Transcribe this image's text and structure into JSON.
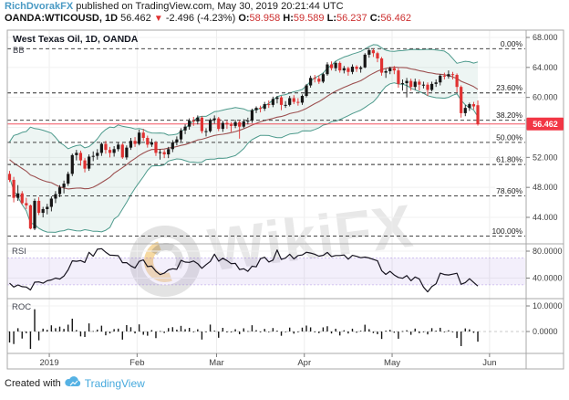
{
  "header": {
    "author": "RichDvorakFX",
    "published": " published on TradingView.com, May 30, 2019 20:21:44 UTC",
    "symbol": "OANDA:WTICOUSD, 1D",
    "last_price": "56.462",
    "direction": "▼",
    "change": "-2.496 (-4.23%)",
    "o_label": "O:",
    "o_val": "58.958",
    "h_label": "H:",
    "h_val": "59.589",
    "l_label": "L:",
    "l_val": "56.237",
    "c_label": "C:",
    "c_val": "56.462"
  },
  "legend": {
    "title": "West Texas Oil, 1D, OANDA",
    "indicator": "BB"
  },
  "panes": {
    "rsi_label": "RSI",
    "roc_label": "ROC"
  },
  "axes": {
    "price_ticks": [
      "68.000",
      "64.000",
      "60.000",
      "52.000",
      "48.000",
      "44.000"
    ],
    "price_badge": "56.462",
    "rsi_ticks": [
      "80.0000",
      "40.0000"
    ],
    "roc_ticks": [
      "10.0000",
      "0.0000"
    ],
    "time_ticks": [
      "2019",
      "Feb",
      "Mar",
      "Apr",
      "May",
      "Jun"
    ]
  },
  "watermark": {
    "text": "WikiFX"
  },
  "footer": {
    "prefix": "Created with",
    "brand": "TradingView"
  },
  "chart_data": {
    "type": "candlestick",
    "title": "West Texas Oil, 1D, OANDA",
    "symbol": "OANDA:WTICOUSD",
    "timeframe": "1D",
    "visible_price_range": [
      40.5,
      69.0
    ],
    "last_quote": {
      "open": 58.958,
      "high": 59.589,
      "low": 56.237,
      "close": 56.462,
      "change": -2.496,
      "change_pct": -4.23
    },
    "fib_retracement": {
      "high": 66.5,
      "low": 41.5,
      "levels": [
        {
          "label": "0.00%",
          "pct": 0
        },
        {
          "label": "23.60%",
          "pct": 23.6
        },
        {
          "label": "38.20%",
          "pct": 38.2
        },
        {
          "label": "50.00%",
          "pct": 50
        },
        {
          "label": "61.80%",
          "pct": 61.8
        },
        {
          "label": "78.60%",
          "pct": 78.6
        },
        {
          "label": "100.00%",
          "pct": 100
        }
      ]
    },
    "indicators": {
      "bollinger": {
        "period": 20,
        "stdev": 2
      },
      "rsi": {
        "period": 14,
        "bands": [
          70,
          30
        ],
        "range_labels": [
          80,
          40
        ]
      },
      "roc": {
        "period": 1,
        "range_labels": [
          10,
          0
        ]
      }
    },
    "warmup_closes": [
      52.9,
      53.3,
      51.5,
      52.6,
      51.0,
      51.7,
      51.2,
      52.6,
      51.2
    ],
    "candles": [
      [
        "12-17",
        49.8,
        50.2,
        48.7,
        49.0
      ],
      [
        "12-18",
        49.0,
        49.4,
        46.0,
        46.6
      ],
      [
        "12-19",
        46.6,
        48.3,
        46.2,
        47.2
      ],
      [
        "12-20",
        47.2,
        47.5,
        45.7,
        45.9
      ],
      [
        "12-21",
        45.9,
        46.6,
        45.1,
        45.6
      ],
      [
        "12-24",
        45.6,
        45.7,
        42.4,
        42.5
      ],
      [
        "12-26",
        42.5,
        46.5,
        42.3,
        46.2
      ],
      [
        "12-27",
        46.2,
        46.7,
        44.3,
        44.6
      ],
      [
        "12-28",
        44.6,
        45.4,
        44.0,
        45.1
      ],
      [
        "12-31",
        45.1,
        45.8,
        44.4,
        45.4
      ],
      [
        "01-02",
        45.4,
        46.8,
        44.8,
        46.5
      ],
      [
        "01-03",
        46.5,
        47.5,
        45.9,
        47.1
      ],
      [
        "01-04",
        47.1,
        48.3,
        46.7,
        48.0
      ],
      [
        "01-07",
        48.0,
        48.9,
        47.2,
        48.5
      ],
      [
        "01-08",
        48.5,
        50.1,
        48.2,
        49.8
      ],
      [
        "01-09",
        49.8,
        52.5,
        49.5,
        52.3
      ],
      [
        "01-10",
        52.3,
        53.0,
        51.6,
        52.6
      ],
      [
        "01-11",
        52.6,
        52.9,
        50.9,
        51.6
      ],
      [
        "01-14",
        51.6,
        51.9,
        50.0,
        50.5
      ],
      [
        "01-15",
        50.5,
        52.4,
        50.2,
        52.1
      ],
      [
        "01-16",
        52.1,
        52.8,
        51.5,
        52.2
      ],
      [
        "01-17",
        52.2,
        53.1,
        51.7,
        52.6
      ],
      [
        "01-18",
        52.6,
        54.0,
        52.2,
        53.8
      ],
      [
        "01-22",
        53.8,
        54.2,
        52.5,
        53.0
      ],
      [
        "01-23",
        53.0,
        53.4,
        52.0,
        52.6
      ],
      [
        "01-24",
        52.6,
        53.5,
        52.1,
        53.1
      ],
      [
        "01-25",
        53.1,
        54.0,
        52.8,
        53.7
      ],
      [
        "01-28",
        53.7,
        53.9,
        51.8,
        52.0
      ],
      [
        "01-29",
        52.0,
        53.6,
        51.7,
        53.3
      ],
      [
        "01-30",
        53.3,
        54.6,
        53.0,
        54.2
      ],
      [
        "01-31",
        54.2,
        54.7,
        53.4,
        53.8
      ],
      [
        "02-01",
        53.8,
        55.7,
        53.6,
        55.3
      ],
      [
        "02-04",
        55.3,
        55.8,
        54.2,
        54.6
      ],
      [
        "02-05",
        54.6,
        54.9,
        53.3,
        53.7
      ],
      [
        "02-06",
        53.7,
        54.5,
        53.4,
        54.0
      ],
      [
        "02-07",
        54.0,
        54.2,
        52.2,
        52.6
      ],
      [
        "02-08",
        52.6,
        53.1,
        51.7,
        52.7
      ],
      [
        "02-11",
        52.7,
        53.0,
        51.9,
        52.4
      ],
      [
        "02-12",
        52.4,
        53.4,
        51.9,
        53.1
      ],
      [
        "02-13",
        53.1,
        54.3,
        52.7,
        54.0
      ],
      [
        "02-14",
        54.0,
        54.8,
        53.6,
        54.4
      ],
      [
        "02-15",
        54.4,
        55.9,
        54.1,
        55.6
      ],
      [
        "02-19",
        55.6,
        56.4,
        55.1,
        56.1
      ],
      [
        "02-20",
        56.1,
        57.2,
        55.7,
        56.9
      ],
      [
        "02-21",
        56.9,
        57.4,
        56.2,
        56.8
      ],
      [
        "02-22",
        56.8,
        57.6,
        56.4,
        57.3
      ],
      [
        "02-25",
        57.3,
        57.5,
        55.2,
        55.5
      ],
      [
        "02-26",
        55.5,
        55.9,
        54.8,
        55.5
      ],
      [
        "02-27",
        55.5,
        57.2,
        55.3,
        57.0
      ],
      [
        "02-28",
        57.0,
        57.6,
        56.5,
        57.2
      ],
      [
        "03-01",
        57.2,
        57.4,
        55.5,
        55.8
      ],
      [
        "03-04",
        55.8,
        56.9,
        55.4,
        56.6
      ],
      [
        "03-05",
        56.6,
        56.9,
        55.8,
        56.4
      ],
      [
        "03-06",
        56.4,
        56.7,
        55.4,
        56.2
      ],
      [
        "03-07",
        56.2,
        57.0,
        55.9,
        56.7
      ],
      [
        "03-08",
        56.7,
        56.9,
        54.5,
        56.1
      ],
      [
        "03-11",
        56.1,
        57.1,
        55.9,
        56.8
      ],
      [
        "03-12",
        56.8,
        57.3,
        56.4,
        56.9
      ],
      [
        "03-13",
        56.9,
        58.5,
        56.6,
        58.3
      ],
      [
        "03-14",
        58.3,
        58.8,
        57.9,
        58.6
      ],
      [
        "03-15",
        58.6,
        58.9,
        58.0,
        58.5
      ],
      [
        "03-18",
        58.5,
        59.4,
        58.2,
        59.1
      ],
      [
        "03-19",
        59.1,
        59.6,
        58.6,
        59.0
      ],
      [
        "03-20",
        59.0,
        60.1,
        58.7,
        59.8
      ],
      [
        "03-21",
        59.8,
        60.2,
        59.2,
        60.0
      ],
      [
        "03-22",
        60.0,
        60.2,
        58.3,
        59.0
      ],
      [
        "03-25",
        59.0,
        59.5,
        58.6,
        59.0
      ],
      [
        "03-26",
        59.0,
        60.2,
        58.8,
        59.9
      ],
      [
        "03-27",
        59.9,
        60.3,
        59.1,
        59.4
      ],
      [
        "03-28",
        59.4,
        59.9,
        58.9,
        59.3
      ],
      [
        "03-29",
        59.3,
        60.4,
        59.0,
        60.2
      ],
      [
        "04-01",
        60.2,
        61.8,
        60.0,
        61.6
      ],
      [
        "04-02",
        61.6,
        62.9,
        61.3,
        62.6
      ],
      [
        "04-03",
        62.6,
        63.0,
        62.0,
        62.5
      ],
      [
        "04-04",
        62.5,
        62.9,
        61.8,
        62.1
      ],
      [
        "04-05",
        62.1,
        63.3,
        61.9,
        63.1
      ],
      [
        "04-08",
        63.1,
        64.7,
        62.9,
        64.4
      ],
      [
        "04-09",
        64.4,
        64.8,
        63.6,
        63.9
      ],
      [
        "04-10",
        63.9,
        64.8,
        63.5,
        64.6
      ],
      [
        "04-11",
        64.6,
        64.8,
        63.3,
        63.6
      ],
      [
        "04-12",
        63.6,
        64.2,
        63.2,
        63.9
      ],
      [
        "04-15",
        63.9,
        64.1,
        62.9,
        63.4
      ],
      [
        "04-16",
        63.4,
        64.4,
        63.1,
        64.1
      ],
      [
        "04-17",
        64.1,
        64.3,
        63.4,
        63.8
      ],
      [
        "04-18",
        63.8,
        64.2,
        63.3,
        64.0
      ],
      [
        "04-22",
        64.0,
        65.9,
        63.9,
        65.7
      ],
      [
        "04-23",
        65.7,
        66.6,
        65.3,
        66.3
      ],
      [
        "04-24",
        66.3,
        66.5,
        65.4,
        65.9
      ],
      [
        "04-25",
        65.9,
        66.1,
        64.7,
        65.2
      ],
      [
        "04-26",
        65.2,
        65.4,
        62.9,
        63.3
      ],
      [
        "04-29",
        63.3,
        63.8,
        62.6,
        63.5
      ],
      [
        "04-30",
        63.5,
        64.1,
        63.1,
        63.9
      ],
      [
        "05-01",
        63.9,
        64.2,
        63.1,
        63.6
      ],
      [
        "05-02",
        63.6,
        63.9,
        61.3,
        61.8
      ],
      [
        "05-03",
        61.8,
        62.4,
        60.9,
        61.9
      ],
      [
        "05-06",
        61.9,
        62.6,
        60.0,
        62.2
      ],
      [
        "05-07",
        62.2,
        62.5,
        60.9,
        61.4
      ],
      [
        "05-08",
        61.4,
        62.5,
        61.0,
        62.1
      ],
      [
        "05-09",
        62.1,
        62.4,
        60.9,
        61.7
      ],
      [
        "05-10",
        61.7,
        62.1,
        61.2,
        61.7
      ],
      [
        "05-13",
        61.7,
        62.0,
        60.2,
        61.0
      ],
      [
        "05-14",
        61.0,
        62.1,
        60.8,
        61.8
      ],
      [
        "05-15",
        61.8,
        62.4,
        61.4,
        62.0
      ],
      [
        "05-16",
        62.0,
        63.1,
        61.6,
        62.9
      ],
      [
        "05-17",
        62.9,
        63.3,
        62.4,
        62.8
      ],
      [
        "05-20",
        62.8,
        63.6,
        62.5,
        63.1
      ],
      [
        "05-21",
        63.1,
        63.4,
        62.4,
        63.0
      ],
      [
        "05-22",
        63.0,
        63.2,
        60.7,
        61.4
      ],
      [
        "05-23",
        61.4,
        61.6,
        57.3,
        57.9
      ],
      [
        "05-24",
        57.9,
        59.0,
        57.5,
        58.6
      ],
      [
        "05-28",
        58.6,
        59.3,
        58.2,
        59.1
      ],
      [
        "05-29",
        59.1,
        59.4,
        58.4,
        58.8
      ],
      [
        "05-30",
        58.958,
        59.589,
        56.237,
        56.462
      ]
    ]
  }
}
